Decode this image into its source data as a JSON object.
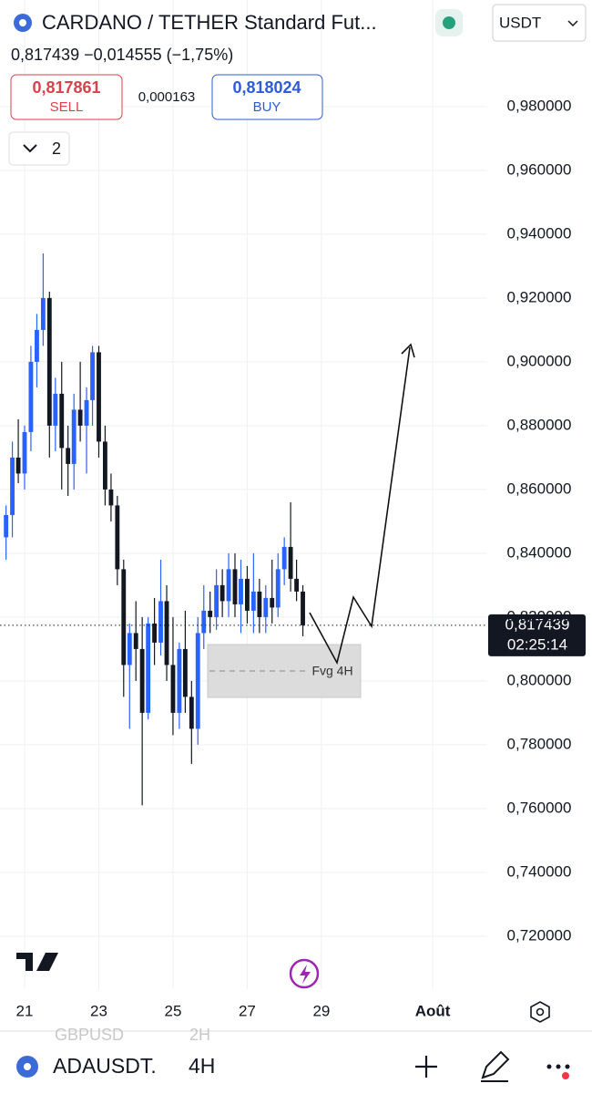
{
  "header": {
    "title": "CARDANO / TETHER Standard Fut...",
    "currency": "USDT",
    "price_line": "0,817439 −0,014555 (−1,75%)",
    "sell_price": "0,817861",
    "sell_label": "SELL",
    "spread": "0,000163",
    "buy_price": "0,818024",
    "buy_label": "BUY",
    "indicator_count": "2"
  },
  "annotation": {
    "fvg_label": "Fvg 4H"
  },
  "footer": {
    "symbol": "ADAUSDT.",
    "interval": "4H",
    "behind_symbol": "GBPUSD",
    "behind_interval": "2H"
  },
  "chart_data": {
    "type": "candlestick",
    "x": [
      20.5,
      20.67,
      20.83,
      21,
      21.17,
      21.33,
      21.5,
      21.67,
      21.83,
      22,
      22.17,
      22.33,
      22.5,
      22.67,
      22.83,
      23,
      23.17,
      23.33,
      23.5,
      23.67,
      23.83,
      24,
      24.17,
      24.33,
      24.5,
      24.67,
      24.83,
      25,
      25.17,
      25.33,
      25.5,
      25.67,
      25.83,
      26,
      26.17,
      26.33,
      26.5,
      26.67,
      26.83,
      27,
      27.17,
      27.33,
      27.5,
      27.67,
      27.83,
      28,
      28.17,
      28.33,
      28.5
    ],
    "open": [
      0.845,
      0.852,
      0.87,
      0.865,
      0.878,
      0.9,
      0.91,
      0.92,
      0.88,
      0.89,
      0.873,
      0.868,
      0.885,
      0.88,
      0.888,
      0.903,
      0.875,
      0.86,
      0.855,
      0.835,
      0.805,
      0.815,
      0.81,
      0.79,
      0.818,
      0.812,
      0.825,
      0.805,
      0.79,
      0.81,
      0.795,
      0.785,
      0.815,
      0.822,
      0.82,
      0.83,
      0.825,
      0.835,
      0.824,
      0.832,
      0.822,
      0.828,
      0.82,
      0.826,
      0.823,
      0.835,
      0.842,
      0.832,
      0.828
    ],
    "high": [
      0.855,
      0.875,
      0.882,
      0.88,
      0.905,
      0.915,
      0.934,
      0.922,
      0.895,
      0.9,
      0.88,
      0.89,
      0.9,
      0.892,
      0.905,
      0.905,
      0.88,
      0.865,
      0.858,
      0.838,
      0.818,
      0.825,
      0.82,
      0.82,
      0.826,
      0.838,
      0.83,
      0.82,
      0.812,
      0.822,
      0.8,
      0.82,
      0.83,
      0.828,
      0.835,
      0.835,
      0.84,
      0.84,
      0.838,
      0.836,
      0.84,
      0.832,
      0.83,
      0.838,
      0.84,
      0.845,
      0.856,
      0.838,
      0.83
    ],
    "low": [
      0.838,
      0.845,
      0.862,
      0.86,
      0.872,
      0.892,
      0.905,
      0.87,
      0.872,
      0.86,
      0.858,
      0.86,
      0.875,
      0.865,
      0.88,
      0.87,
      0.855,
      0.85,
      0.83,
      0.795,
      0.785,
      0.8,
      0.761,
      0.788,
      0.805,
      0.808,
      0.8,
      0.783,
      0.785,
      0.79,
      0.774,
      0.78,
      0.81,
      0.815,
      0.816,
      0.82,
      0.82,
      0.82,
      0.815,
      0.818,
      0.815,
      0.815,
      0.815,
      0.818,
      0.82,
      0.83,
      0.828,
      0.825,
      0.814
    ],
    "close": [
      0.852,
      0.87,
      0.865,
      0.878,
      0.9,
      0.91,
      0.92,
      0.88,
      0.89,
      0.873,
      0.868,
      0.885,
      0.88,
      0.888,
      0.903,
      0.875,
      0.86,
      0.855,
      0.835,
      0.805,
      0.815,
      0.81,
      0.79,
      0.818,
      0.812,
      0.825,
      0.805,
      0.79,
      0.81,
      0.795,
      0.785,
      0.815,
      0.822,
      0.82,
      0.83,
      0.825,
      0.835,
      0.824,
      0.832,
      0.822,
      0.828,
      0.82,
      0.826,
      0.823,
      0.835,
      0.842,
      0.832,
      0.828,
      0.817439
    ],
    "up_color": "#2962ff",
    "down_color": "#131722",
    "xlim": [
      20.337,
      33.47
    ],
    "ylim": [
      0.7034,
      1.0134
    ],
    "xticks": [
      21,
      23,
      25,
      27,
      29,
      {
        "value": 32,
        "label": "Août"
      }
    ],
    "yticks": [
      {
        "value": 0.72,
        "label": "0,720000"
      },
      {
        "value": 0.74,
        "label": "0,740000"
      },
      {
        "value": 0.76,
        "label": "0,760000"
      },
      {
        "value": 0.78,
        "label": "0,780000"
      },
      {
        "value": 0.8,
        "label": "0,800000"
      },
      {
        "value": 0.82,
        "label": "0,820000"
      },
      {
        "value": 0.84,
        "label": "0,840000"
      },
      {
        "value": 0.86,
        "label": "0,860000"
      },
      {
        "value": 0.88,
        "label": "0,880000"
      },
      {
        "value": 0.9,
        "label": "0,900000"
      },
      {
        "value": 0.92,
        "label": "0,920000"
      },
      {
        "value": 0.94,
        "label": "0,940000"
      },
      {
        "value": 0.96,
        "label": "0,960000"
      },
      {
        "value": 0.98,
        "label": "0,980000"
      }
    ],
    "grid": true,
    "last_price": {
      "value": 0.817439,
      "label": "0,817439"
    },
    "countdown": "02:25:14"
  }
}
